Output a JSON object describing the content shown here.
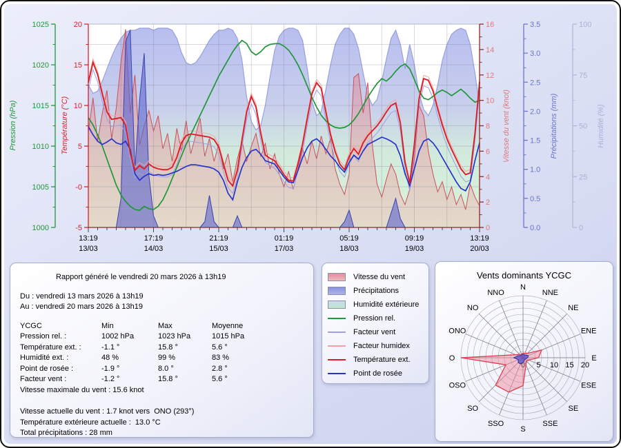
{
  "report": {
    "generated": "Rapport généré le vendredi 20 mars 2026 à 13h19",
    "period_from": "Du : vendredi 13 mars 2026 à 13h19",
    "period_to": "Au : vendredi 20 mars 2026 à 13h19",
    "table": {
      "headers": [
        "YCGC",
        "Min",
        "Max",
        "Moyenne"
      ],
      "rows": [
        [
          "Pression rel. :",
          "1002 hPa",
          "1023 hPa",
          "1015 hPa"
        ],
        [
          "Température ext. :",
          "-1.1 °",
          "15.8 °",
          "5.6 °"
        ],
        [
          "Humidité ext. :",
          "48 %",
          "99 %",
          "83 %"
        ],
        [
          "Point de rosée :",
          "-1.9 °",
          "8.0 °",
          "2.8 °"
        ],
        [
          "Facteur vent :",
          "-1.2 °",
          "15.8 °",
          "5.6 °"
        ]
      ]
    },
    "max_wind_line": "Vitesse maximale du vent : 15.6 knot",
    "current_lines": [
      "Vitesse actuelle du vent : 1.7 knot vers  ONO (293°)",
      "Température extérieure actuelle :  13.0 °C",
      "Total précipitations : 28 mm"
    ]
  },
  "legend": {
    "items": [
      {
        "label": "Vitesse du vent",
        "swatch": "box",
        "c1": "#e0909e",
        "c2": "#efb9c1"
      },
      {
        "label": "Précipitations",
        "swatch": "box",
        "c1": "#8a92dd",
        "c2": "#adb3e9"
      },
      {
        "label": "Humidité extérieure",
        "swatch": "box",
        "c1": "#c8d9ee",
        "c2": "#c0e5cb"
      },
      {
        "label": "Pression rel.",
        "swatch": "line",
        "color": "#1f9638"
      },
      {
        "label": "Facteur vent",
        "swatch": "line",
        "color": "#9f9fe0"
      },
      {
        "label": "Facteur humidex",
        "swatch": "line",
        "color": "#f0a0a0"
      },
      {
        "label": "Température ext.",
        "swatch": "line",
        "color": "#d81f28"
      },
      {
        "label": "Point de rosée",
        "swatch": "line",
        "color": "#2733c8"
      }
    ]
  },
  "chart_data": {
    "type": "area+line",
    "hours_span": 168,
    "x_ticks": [
      {
        "time": "13:19",
        "date": "13/03"
      },
      {
        "time": "17:19",
        "date": "14/03"
      },
      {
        "time": "21:19",
        "date": "15/03"
      },
      {
        "time": "01:19",
        "date": "17/03"
      },
      {
        "time": "05:19",
        "date": "18/03"
      },
      {
        "time": "09:19",
        "date": "19/03"
      },
      {
        "time": "13:19",
        "date": "20/03"
      }
    ],
    "axes": {
      "pressure": {
        "title": "Pression (hPa)",
        "min": 1000,
        "max": 1025,
        "tick_labels": [
          "1000",
          "1005",
          "1010",
          "1015",
          "1020",
          "1025"
        ],
        "tick_values": [
          1000,
          1005,
          1010,
          1015,
          1020,
          1025
        ],
        "color": "#1f9638"
      },
      "temperature": {
        "title": "Température (°C)",
        "min": -5,
        "max": 20,
        "tick_labels": [
          "-5",
          "-0",
          "5",
          "10",
          "15",
          "20"
        ],
        "tick_values": [
          -5,
          0,
          5,
          10,
          15,
          20
        ],
        "color": "#d81f28"
      },
      "wind": {
        "title": "Vitesse du vent (knot)",
        "min": 0,
        "max": 16,
        "tick_labels": [
          "0",
          "2",
          "4",
          "6",
          "8",
          "10",
          "12",
          "14",
          "16"
        ],
        "tick_values": [
          0,
          2,
          4,
          6,
          8,
          10,
          12,
          14,
          16
        ],
        "color": "#e07878"
      },
      "precip": {
        "title": "Précipitations (mm)",
        "min": 0,
        "max": 3.5,
        "tick_labels": [
          "0.0",
          "0.5",
          "1.0",
          "1.5",
          "2.0",
          "2.5",
          "3.0",
          "3.5"
        ],
        "tick_values": [
          0,
          0.5,
          1,
          1.5,
          2,
          2.5,
          3,
          3.5
        ],
        "color": "#6a74cc"
      },
      "humidity": {
        "title": "Humidité (%)",
        "min": 0,
        "max": 100,
        "tick_labels": [
          "0",
          "25",
          "50",
          "75",
          "100"
        ],
        "tick_values": [
          0,
          25,
          50,
          75,
          100
        ],
        "color": "#b0b5d6"
      }
    },
    "series": {
      "temperature_c": [
        12.8,
        15.3,
        13.8,
        11.4,
        9.2,
        8.3,
        8.4,
        8.5,
        7.6,
        4.2,
        2.0,
        2.6,
        2.2,
        2.8,
        2.4,
        2.2,
        2.1,
        2.1,
        2.4,
        3.6,
        5.4,
        6.3,
        6.5,
        6.4,
        6.3,
        6.2,
        6.1,
        5.8,
        4.9,
        2.8,
        0.8,
        0.1,
        2.0,
        5.8,
        9.2,
        11.1,
        9.8,
        6.6,
        3.9,
        3.5,
        3.2,
        2.4,
        1.5,
        0.8,
        0.7,
        2.8,
        5.2,
        8.4,
        11.4,
        12.8,
        12.1,
        9.2,
        6.4,
        4.3,
        2.8,
        2.1,
        3.7,
        4.7,
        4.0,
        5.4,
        6.3,
        6.9,
        7.5,
        8.3,
        9.2,
        10.0,
        10.3,
        7.8,
        3.0,
        0.4,
        5.2,
        10.8,
        13.3,
        13.1,
        11.8,
        9.6,
        7.6,
        5.9,
        4.6,
        3.4,
        2.2,
        1.5,
        1.7,
        6.5,
        12.9
      ],
      "dewpoint_c": [
        7.4,
        6.4,
        5.6,
        5.2,
        5.5,
        5.9,
        5.4,
        5.2,
        5.6,
        4.6,
        1.6,
        0.8,
        1.3,
        1.6,
        1.4,
        1.5,
        1.4,
        1.5,
        1.7,
        1.9,
        2.2,
        2.5,
        2.7,
        2.7,
        2.6,
        2.5,
        2.4,
        2.2,
        1.8,
        0.8,
        -0.8,
        -1.6,
        0.6,
        2.4,
        3.6,
        4.4,
        4.6,
        4.0,
        3.2,
        3.0,
        2.8,
        2.0,
        1.2,
        0.6,
        0.5,
        2.0,
        3.6,
        4.8,
        5.6,
        5.9,
        5.4,
        4.6,
        3.8,
        3.2,
        2.4,
        1.8,
        3.0,
        3.9,
        3.4,
        4.4,
        5.2,
        5.5,
        5.8,
        6.1,
        5.9,
        5.6,
        5.2,
        3.8,
        1.6,
        0.1,
        2.2,
        4.4,
        5.6,
        5.9,
        5.4,
        4.6,
        3.6,
        2.6,
        1.6,
        0.6,
        -0.2,
        -0.5,
        0.6,
        3.2,
        5.4
      ],
      "pressure_hpa": [
        1013.5,
        1012.6,
        1011.4,
        1010.0,
        1008.4,
        1006.8,
        1005.2,
        1004.0,
        1003.2,
        1002.6,
        1002.2,
        1002.1,
        1002.6,
        1002.3,
        1002.2,
        1002.6,
        1003.4,
        1004.6,
        1006.0,
        1007.4,
        1008.8,
        1010.2,
        1011.4,
        1012.6,
        1013.8,
        1015.0,
        1016.2,
        1017.4,
        1018.6,
        1019.6,
        1020.6,
        1021.6,
        1022.4,
        1023.0,
        1022.6,
        1021.6,
        1021.2,
        1021.6,
        1022.2,
        1022.5,
        1022.6,
        1022.6,
        1022.3,
        1021.8,
        1021.0,
        1020.0,
        1018.8,
        1017.4,
        1016.0,
        1014.8,
        1013.8,
        1013.1,
        1012.6,
        1012.3,
        1012.2,
        1012.3,
        1012.6,
        1013.2,
        1014.0,
        1015.0,
        1016.0,
        1016.9,
        1017.7,
        1018.3,
        1018.0,
        1018.5,
        1019.2,
        1019.8,
        1020.1,
        1019.5,
        1018.2,
        1016.8,
        1015.9,
        1015.7,
        1016.1,
        1016.6,
        1016.9,
        1016.6,
        1016.2,
        1016.6,
        1017.0,
        1016.5,
        1015.9,
        1015.4,
        1015.6
      ],
      "wind_knot": [
        7.5,
        10.2,
        6.8,
        9.0,
        10.8,
        7.0,
        9.4,
        13.0,
        15.6,
        9.0,
        12.0,
        6.5,
        8.0,
        9.2,
        7.6,
        8.8,
        6.2,
        7.4,
        5.2,
        7.8,
        6.0,
        8.4,
        5.8,
        7.2,
        8.6,
        5.6,
        7.0,
        5.2,
        6.6,
        4.6,
        5.8,
        3.6,
        5.4,
        6.8,
        5.2,
        6.4,
        7.4,
        5.6,
        6.6,
        4.6,
        5.8,
        4.2,
        3.2,
        4.4,
        3.0,
        4.6,
        6.2,
        5.0,
        6.8,
        5.4,
        7.2,
        5.8,
        7.0,
        4.6,
        3.4,
        2.6,
        4.2,
        11.8,
        12.1,
        9.0,
        11.4,
        6.4,
        3.4,
        2.4,
        3.8,
        5.0,
        4.2,
        2.6,
        1.8,
        3.0,
        5.4,
        9.6,
        8.8,
        6.0,
        4.2,
        2.8,
        3.6,
        2.2,
        3.2,
        1.8,
        2.6,
        1.4,
        3.4,
        2.4,
        1.7
      ],
      "precip_mm": [
        0,
        0,
        0,
        0,
        0,
        0,
        0,
        0.5,
        3.2,
        3.4,
        1.0,
        2.2,
        3.0,
        0.9,
        0.2,
        0,
        0,
        0,
        0,
        0,
        0,
        0,
        0,
        0,
        0,
        0.1,
        0.55,
        0.1,
        0,
        0,
        0,
        0,
        0.2,
        0,
        0,
        0,
        0,
        0,
        0,
        0,
        0,
        0,
        0,
        0,
        0,
        0,
        0,
        0,
        0,
        0,
        0,
        0,
        0,
        0,
        0,
        0.1,
        0.3,
        0,
        0,
        0,
        0,
        0,
        0,
        0,
        0,
        0.25,
        0.5,
        0.15,
        0,
        0,
        0,
        0,
        0,
        0,
        0,
        0,
        0,
        0,
        0,
        0,
        0,
        0,
        0,
        0,
        0
      ],
      "humidity_pct": [
        70,
        66,
        67,
        72,
        78,
        84,
        89,
        93,
        96,
        97,
        97,
        98,
        98,
        98,
        97,
        98,
        98,
        98,
        97,
        93,
        86,
        81,
        80,
        81,
        84,
        88,
        92,
        95,
        97,
        97,
        98,
        97,
        93,
        82,
        64,
        52,
        48,
        50,
        60,
        74,
        87,
        94,
        97,
        98,
        98,
        97,
        92,
        78,
        62,
        55,
        57,
        68,
        80,
        90,
        95,
        98,
        98,
        95,
        88,
        76,
        65,
        60,
        63,
        72,
        83,
        93,
        97,
        90,
        78,
        90,
        80,
        66,
        58,
        55,
        60,
        70,
        82,
        90,
        95,
        97,
        98,
        97,
        90,
        76,
        60
      ]
    }
  },
  "windrose": {
    "title": "Vents dominants YCGC",
    "directions": [
      "N",
      "NNE",
      "NE",
      "ENE",
      "E",
      "ESE",
      "SE",
      "SSE",
      "S",
      "SSO",
      "SO",
      "OSO",
      "O",
      "ONO",
      "NO",
      "NNO"
    ],
    "scale_ticks": [
      "0",
      "5",
      "10",
      "15",
      "20"
    ],
    "scale_values": [
      0,
      5,
      10,
      15,
      20
    ],
    "max": 20,
    "frequency_pct": [
      1.5,
      1.5,
      2,
      6.5,
      5,
      2,
      1.5,
      2.5,
      9,
      12,
      12.5,
      6,
      20,
      2.5,
      1.5,
      1.2
    ],
    "secondary": [
      1.2,
      1,
      1.2,
      1.8,
      1.5,
      1,
      0.8,
      1,
      1.6,
      2.2,
      2.2,
      1.6,
      3,
      1.6,
      1,
      1
    ]
  }
}
